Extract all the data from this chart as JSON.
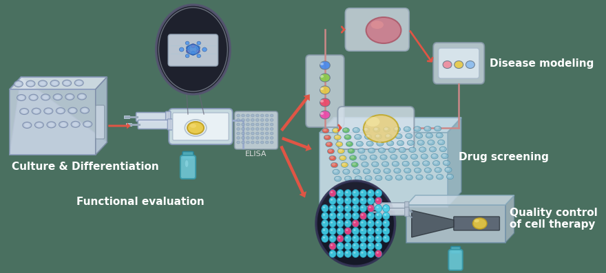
{
  "background_color": "#4a7060",
  "labels": {
    "culture": "Culture & Differentiation",
    "functional": "Functional evaluation",
    "elisa": "ELISA",
    "disease": "Disease modeling",
    "drug": "Drug screening",
    "quality": "Quality control\nof cell therapy"
  },
  "label_color": "#ffffff",
  "arrow_color": "#e05545",
  "label_fontsize": 11,
  "small_fontsize": 8
}
